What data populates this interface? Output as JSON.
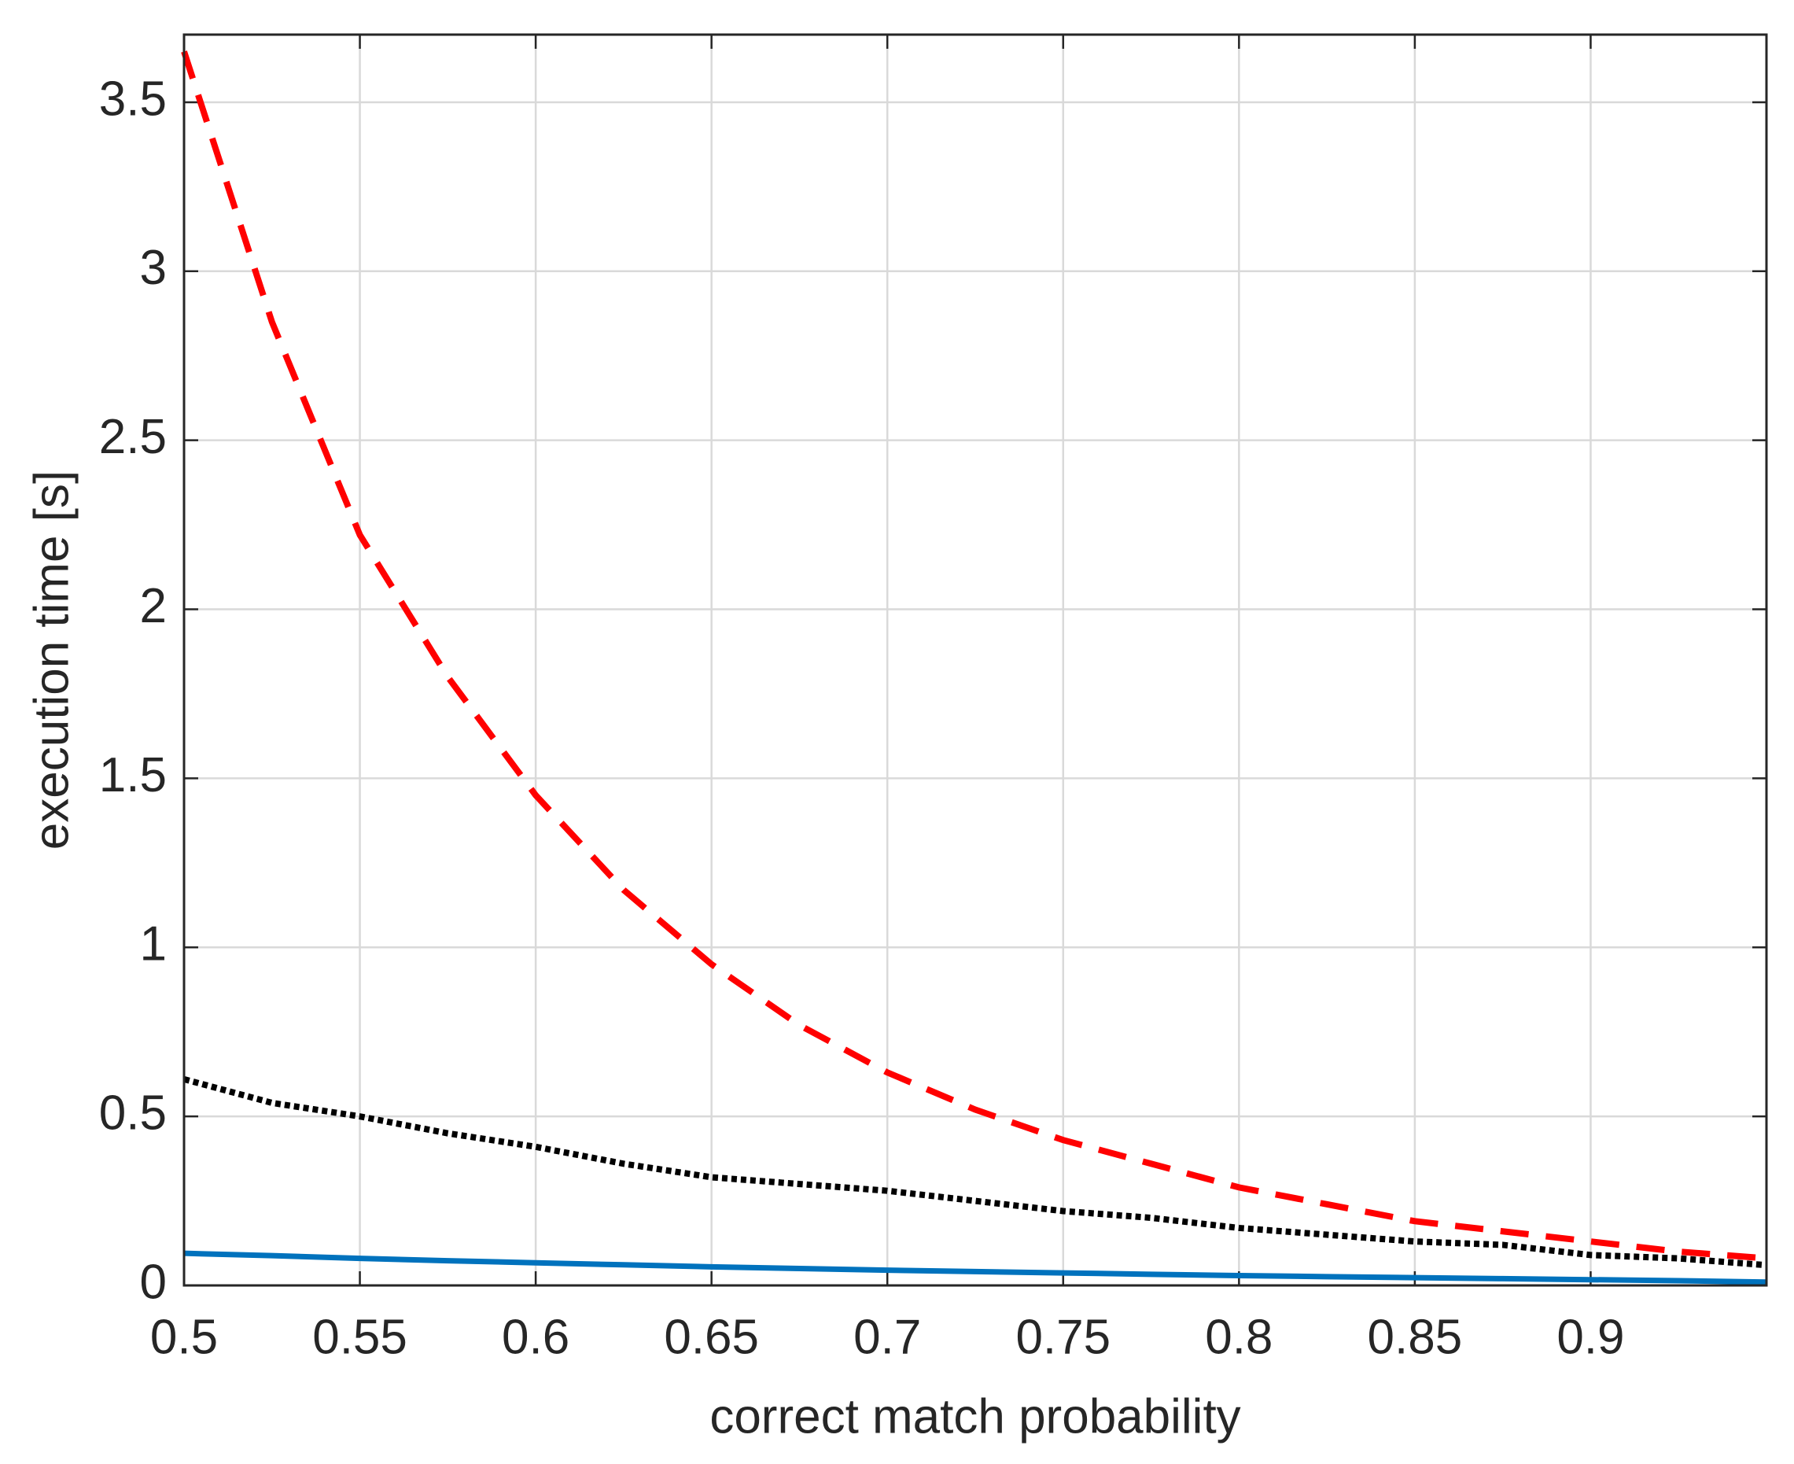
{
  "chart_data": {
    "type": "line",
    "xlabel": "correct match probability",
    "ylabel": "execution time [s]",
    "x": [
      0.5,
      0.525,
      0.55,
      0.575,
      0.6,
      0.625,
      0.65,
      0.675,
      0.7,
      0.725,
      0.75,
      0.775,
      0.8,
      0.825,
      0.85,
      0.875,
      0.9,
      0.925,
      0.95
    ],
    "series": [
      {
        "color": "#ff0000",
        "dash": "dashed",
        "values": [
          3.65,
          2.85,
          2.22,
          1.8,
          1.45,
          1.17,
          0.95,
          0.77,
          0.63,
          0.52,
          0.43,
          0.36,
          0.29,
          0.24,
          0.19,
          0.16,
          0.13,
          0.1,
          0.08
        ]
      },
      {
        "color": "#000000",
        "dash": "dotted",
        "values": [
          0.61,
          0.54,
          0.5,
          0.45,
          0.41,
          0.36,
          0.32,
          0.3,
          0.28,
          0.25,
          0.22,
          0.2,
          0.17,
          0.15,
          0.13,
          0.12,
          0.09,
          0.08,
          0.06
        ]
      },
      {
        "color": "#0072bd",
        "dash": "solid",
        "values": [
          0.095,
          0.088,
          0.08,
          0.073,
          0.067,
          0.061,
          0.055,
          0.05,
          0.045,
          0.041,
          0.037,
          0.033,
          0.029,
          0.026,
          0.023,
          0.02,
          0.017,
          0.014,
          0.01
        ]
      }
    ],
    "xlim": [
      0.5,
      0.95
    ],
    "xticks": [
      0.5,
      0.55,
      0.6,
      0.65,
      0.7,
      0.75,
      0.8,
      0.85,
      0.9
    ],
    "ylim": [
      0,
      3.7
    ],
    "yticks": [
      0,
      0.5,
      1,
      1.5,
      2,
      2.5,
      3,
      3.5
    ],
    "grid": true
  }
}
